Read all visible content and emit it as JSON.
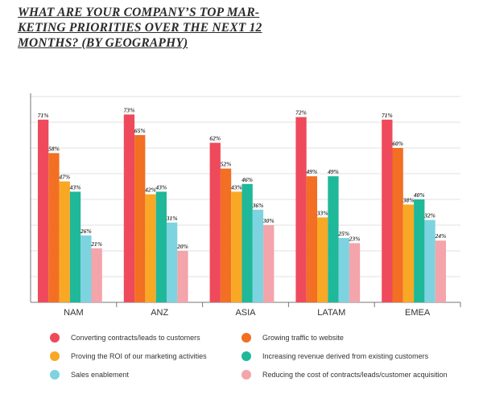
{
  "title_lines": [
    "WHAT ARE YOUR COMPANY’S TOP MAR-",
    "KETING PRIORITIES OVER THE NEXT 12",
    "MONTHS? (BY GEOGRAPHY)"
  ],
  "chart_data": {
    "type": "bar",
    "title": "WHAT ARE YOUR COMPANY’S TOP MARKETING PRIORITIES OVER THE NEXT 12 MONTHS? (BY GEOGRAPHY)",
    "categories": [
      "NAM",
      "ANZ",
      "ASIA",
      "LATAM",
      "EMEA"
    ],
    "series": [
      {
        "name": "Converting contracts/leads to customers",
        "color": "#ee4a5b",
        "values": [
          71,
          73,
          62,
          72,
          71
        ]
      },
      {
        "name": "Growing traffic to website",
        "color": "#f26f23",
        "values": [
          58,
          65,
          52,
          49,
          60
        ]
      },
      {
        "name": "Proving the ROI of our marketing activities",
        "color": "#f9a825",
        "values": [
          47,
          42,
          43,
          33,
          38
        ]
      },
      {
        "name": "Increasing revenue derived from existing customers",
        "color": "#1fb899",
        "values": [
          43,
          43,
          46,
          49,
          40
        ]
      },
      {
        "name": "Sales enablement",
        "color": "#7dd3e0",
        "values": [
          26,
          31,
          36,
          25,
          32
        ]
      },
      {
        "name": "Reducing the cost of contracts/leads/customer acquisition",
        "color": "#f4a4ab",
        "values": [
          21,
          20,
          30,
          23,
          24
        ]
      }
    ],
    "value_suffix": "%",
    "ylim": [
      0,
      80
    ],
    "grid": true,
    "legend_position": "bottom"
  }
}
